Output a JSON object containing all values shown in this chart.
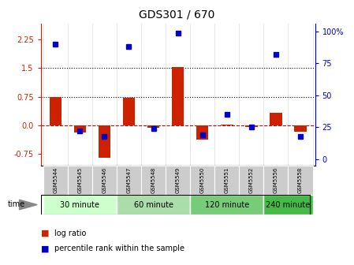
{
  "title": "GDS301 / 670",
  "samples": [
    "GSM5544",
    "GSM5545",
    "GSM5546",
    "GSM5547",
    "GSM5548",
    "GSM5549",
    "GSM5550",
    "GSM5551",
    "GSM5552",
    "GSM5556",
    "GSM5558"
  ],
  "log_ratio": [
    0.75,
    -0.18,
    -0.85,
    0.72,
    -0.07,
    1.52,
    -0.38,
    0.02,
    -0.05,
    0.32,
    -0.17
  ],
  "percentile": [
    90,
    22,
    18,
    88,
    24,
    99,
    19,
    35,
    25,
    82,
    18
  ],
  "bar_color": "#cc2200",
  "dot_color": "#0000cc",
  "ylim_left": [
    -1.05,
    2.65
  ],
  "ylim_right": [
    -5,
    106
  ],
  "yticks_left": [
    -0.75,
    0.0,
    0.75,
    1.5,
    2.25
  ],
  "yticks_right": [
    0,
    25,
    50,
    75,
    100
  ],
  "hlines": [
    0.75,
    1.5
  ],
  "zero_color": "#cc0000",
  "group_data": [
    {
      "label": "30 minute",
      "start": 0,
      "end": 2,
      "color": "#ccffcc"
    },
    {
      "label": "60 minute",
      "start": 3,
      "end": 5,
      "color": "#aaddaa"
    },
    {
      "label": "120 minute",
      "start": 6,
      "end": 8,
      "color": "#77cc77"
    },
    {
      "label": "240 minute",
      "start": 9,
      "end": 10,
      "color": "#44bb44"
    }
  ]
}
